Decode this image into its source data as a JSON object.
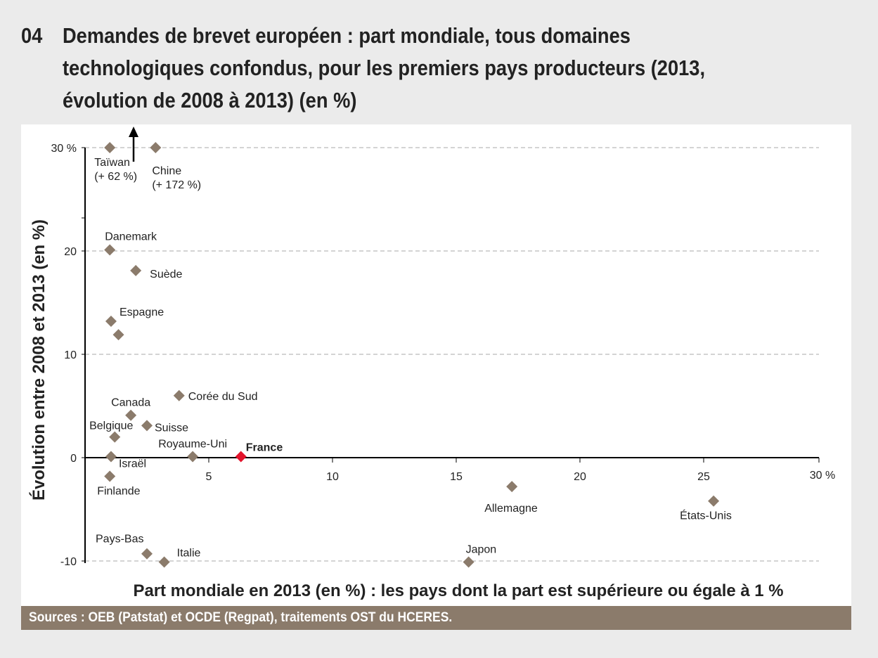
{
  "title": {
    "number": "04",
    "text": "Demandes de brevet européen : part mondiale, tous domaines technologiques confondus, pour les premiers pays producteurs (2013, évolution de 2008 à 2013) (en %)"
  },
  "footer": {
    "sources": "Sources : OEB (Patstat) et OCDE (Regpat), traitements OST du HCERES."
  },
  "colors": {
    "point": "#8b7b6b",
    "highlight": "#e3132b",
    "footer": "#8b7b6b"
  },
  "chart_data": {
    "type": "scatter",
    "xlabel": "Part mondiale en 2013 (en %) : les pays dont la part est supérieure ou égale à 1 %",
    "ylabel": "Évolution entre 2008 et 2013 (en %)",
    "xlim": [
      0,
      30
    ],
    "ylim": [
      -10,
      30
    ],
    "x_ticks": [
      {
        "v": 5,
        "label": "5"
      },
      {
        "v": 10,
        "label": "10"
      },
      {
        "v": 15,
        "label": "15"
      },
      {
        "v": 20,
        "label": "20"
      },
      {
        "v": 25,
        "label": "25"
      },
      {
        "v": 30,
        "label": "30 %"
      }
    ],
    "y_ticks": [
      {
        "v": -10,
        "label": "-10"
      },
      {
        "v": 0,
        "label": "0"
      },
      {
        "v": 10,
        "label": "10"
      },
      {
        "v": 20,
        "label": "20"
      },
      {
        "v": 30,
        "label": "30 %"
      }
    ],
    "grid": "horizontal dashed",
    "points": [
      {
        "name": "Taïwan",
        "note": "(+ 62 %)",
        "x": 1.0,
        "y": 30,
        "actual_y": 62
      },
      {
        "name": "Chine",
        "note": "(+ 172 %)",
        "x": 2.85,
        "y": 30,
        "actual_y": 172
      },
      {
        "name": "Danemark",
        "x": 1.0,
        "y": 20.1
      },
      {
        "name": "Suède",
        "x": 2.05,
        "y": 18.1
      },
      {
        "name": "Espagne",
        "x": 1.05,
        "y": 13.2
      },
      {
        "name": "",
        "x": 1.35,
        "y": 11.9
      },
      {
        "name": "Corée du Sud",
        "x": 3.8,
        "y": 6.0
      },
      {
        "name": "Canada",
        "x": 1.85,
        "y": 4.1
      },
      {
        "name": "Suisse",
        "x": 2.5,
        "y": 3.1
      },
      {
        "name": "Belgique",
        "x": 1.2,
        "y": 2.0
      },
      {
        "name": "Israël",
        "x": 1.05,
        "y": 0.1
      },
      {
        "name": "Royaume-Uni",
        "x": 4.35,
        "y": 0.1
      },
      {
        "name": "France",
        "x": 6.3,
        "y": 0.1,
        "highlight": true
      },
      {
        "name": "Finlande",
        "x": 1.0,
        "y": -1.8
      },
      {
        "name": "Allemagne",
        "x": 17.25,
        "y": -2.8
      },
      {
        "name": "États-Unis",
        "x": 25.4,
        "y": -4.2
      },
      {
        "name": "Pays-Bas",
        "x": 2.5,
        "y": -9.3
      },
      {
        "name": "Italie",
        "x": 3.2,
        "y": -10.1
      },
      {
        "name": "Japon",
        "x": 15.5,
        "y": -10.1
      }
    ]
  }
}
